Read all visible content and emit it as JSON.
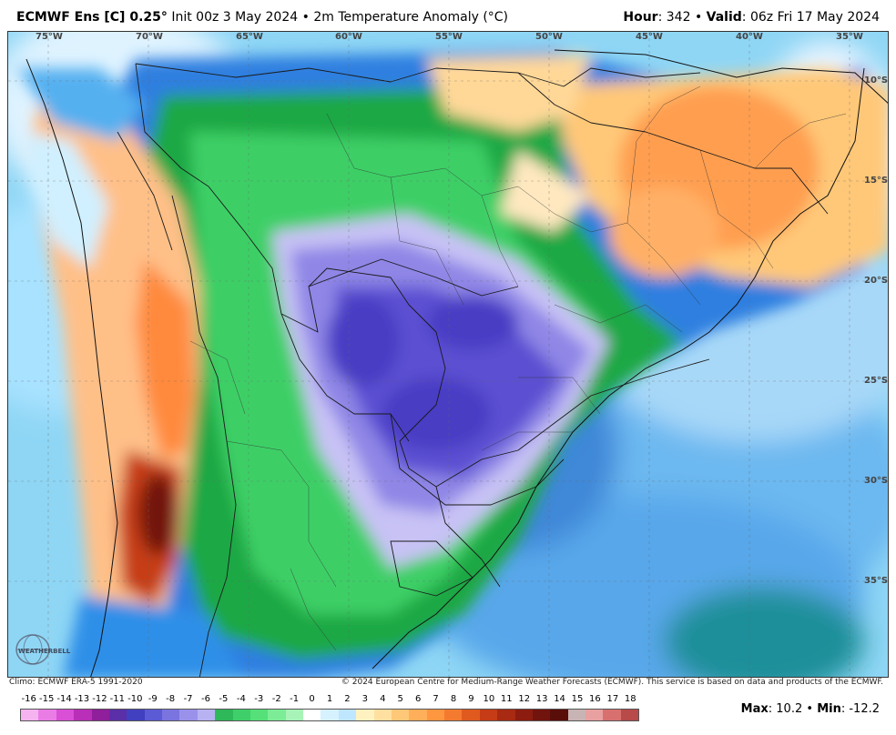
{
  "header": {
    "model": "ECMWF Ens [C] 0.25",
    "degree": "°",
    "init": "Init 00z 3 May 2024",
    "bullet": "•",
    "field": "2m Temperature Anomaly (°C)",
    "hour_label": "Hour",
    "hour_value": "342",
    "valid_label": "Valid",
    "valid_value": "06z Fri 17 May 2024"
  },
  "axes": {
    "longitudes": [
      "75°W",
      "70°W",
      "65°W",
      "60°W",
      "55°W",
      "50°W",
      "45°W",
      "40°W",
      "35°W"
    ],
    "latitudes": [
      "10°S",
      "15°S",
      "20°S",
      "25°S",
      "30°S",
      "35°S"
    ]
  },
  "footer": {
    "climo": "Climo: ECMWF ERA-5 1991-2020",
    "copyright": "© 2024 European Centre for Medium-Range Weather Forecasts (ECMWF). This service is based on data and products of the ECMWF."
  },
  "colorbar": {
    "ticks": [
      "-16",
      "-15",
      "-14",
      "-13",
      "-12",
      "-11",
      "-10",
      "-9",
      "-8",
      "-7",
      "-6",
      "-5",
      "-4",
      "-3",
      "-2",
      "-1",
      "0",
      "1",
      "2",
      "3",
      "4",
      "5",
      "6",
      "7",
      "8",
      "9",
      "10",
      "11",
      "12",
      "13",
      "14",
      "15",
      "16",
      "17",
      "18"
    ],
    "colors": [
      "#f5b4f0",
      "#ea7ce6",
      "#d94fd6",
      "#b92fb8",
      "#8f1f9a",
      "#5a2fa8",
      "#4040c0",
      "#5b5bd6",
      "#7a74e0",
      "#9a92ea",
      "#b8b2f2",
      "#2fb85a",
      "#3fcf6a",
      "#55e07a",
      "#7cec96",
      "#a8f3b8",
      "#ffffff",
      "#d6f1ff",
      "#bfe6ff",
      "#fff2c0",
      "#ffe0a0",
      "#ffc878",
      "#ffae5a",
      "#ff9640",
      "#f47a30",
      "#e05a20",
      "#c63c16",
      "#a82a12",
      "#8c1c10",
      "#72140e",
      "#5a0e0a",
      "#c8b4b4",
      "#e8a0a0",
      "#d87070",
      "#b84a4a"
    ]
  },
  "stats": {
    "max_label": "Max",
    "max_value": "10.2",
    "min_label": "Min",
    "min_value": "-12.2"
  },
  "logo": {
    "text": "WEATHERBELL"
  }
}
